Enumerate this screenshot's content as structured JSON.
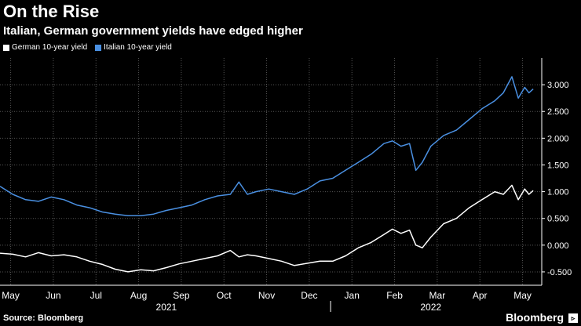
{
  "header": {
    "title": "On the Rise",
    "subtitle": "Italian, German government yields have edged higher"
  },
  "footer": {
    "source": "Source: Bloomberg",
    "brand": "Bloomberg"
  },
  "chart_data": {
    "type": "line",
    "title": "On the Rise",
    "subtitle": "Italian, German government yields have edged higher",
    "xlabel": "",
    "ylabel": "",
    "ylim": [
      -0.75,
      3.5
    ],
    "yticks": [
      -0.5,
      0,
      0.5,
      1,
      1.5,
      2,
      2.5,
      3
    ],
    "ytick_labels": [
      "-0.500",
      "0.000",
      "0.500",
      "1.000",
      "1.500",
      "2.000",
      "2.500",
      "3.000"
    ],
    "xlim": [
      0,
      12.7
    ],
    "xticks": [
      {
        "x": 0.25,
        "label": "May"
      },
      {
        "x": 1.25,
        "label": "Jun"
      },
      {
        "x": 2.25,
        "label": "Jul"
      },
      {
        "x": 3.25,
        "label": "Aug"
      },
      {
        "x": 4.25,
        "label": "Sep"
      },
      {
        "x": 5.25,
        "label": "Oct"
      },
      {
        "x": 6.25,
        "label": "Nov"
      },
      {
        "x": 7.25,
        "label": "Dec"
      },
      {
        "x": 8.25,
        "label": "Jan"
      },
      {
        "x": 9.25,
        "label": "Feb"
      },
      {
        "x": 10.25,
        "label": "Mar"
      },
      {
        "x": 11.25,
        "label": "Apr"
      },
      {
        "x": 12.25,
        "label": "May"
      }
    ],
    "year_labels": [
      {
        "x": 3.9,
        "label": "2021"
      },
      {
        "x": 10.1,
        "label": "2022"
      }
    ],
    "year_divider_x": 7.75,
    "grid": true,
    "legend_position": "top-left",
    "series": [
      {
        "name": "German 10-year yield",
        "color": "#ffffff",
        "x": [
          0,
          0.3,
          0.6,
          0.9,
          1.2,
          1.5,
          1.8,
          2.1,
          2.4,
          2.7,
          3.0,
          3.3,
          3.6,
          3.9,
          4.2,
          4.5,
          4.8,
          5.1,
          5.4,
          5.6,
          5.8,
          6.0,
          6.3,
          6.6,
          6.9,
          7.2,
          7.5,
          7.8,
          8.1,
          8.4,
          8.7,
          9.0,
          9.2,
          9.4,
          9.6,
          9.75,
          9.9,
          10.1,
          10.4,
          10.7,
          11.0,
          11.3,
          11.6,
          11.8,
          12.0,
          12.15,
          12.3,
          12.4,
          12.5
        ],
        "y": [
          -0.15,
          -0.17,
          -0.22,
          -0.14,
          -0.2,
          -0.18,
          -0.22,
          -0.3,
          -0.36,
          -0.45,
          -0.5,
          -0.46,
          -0.48,
          -0.42,
          -0.35,
          -0.3,
          -0.25,
          -0.2,
          -0.1,
          -0.22,
          -0.18,
          -0.2,
          -0.25,
          -0.3,
          -0.38,
          -0.34,
          -0.3,
          -0.3,
          -0.2,
          -0.05,
          0.05,
          0.2,
          0.3,
          0.22,
          0.28,
          0.0,
          -0.05,
          0.15,
          0.4,
          0.5,
          0.7,
          0.85,
          1.0,
          0.95,
          1.12,
          0.85,
          1.05,
          0.95,
          1.02
        ]
      },
      {
        "name": "Italian 10-year yield",
        "color": "#4a90e2",
        "x": [
          0,
          0.3,
          0.6,
          0.9,
          1.2,
          1.5,
          1.8,
          2.1,
          2.4,
          2.7,
          3.0,
          3.3,
          3.6,
          3.9,
          4.2,
          4.5,
          4.8,
          5.1,
          5.4,
          5.6,
          5.8,
          6.0,
          6.3,
          6.6,
          6.9,
          7.2,
          7.5,
          7.8,
          8.1,
          8.4,
          8.7,
          9.0,
          9.2,
          9.4,
          9.6,
          9.75,
          9.9,
          10.1,
          10.4,
          10.7,
          11.0,
          11.3,
          11.6,
          11.8,
          12.0,
          12.15,
          12.3,
          12.4,
          12.5
        ],
        "y": [
          1.1,
          0.95,
          0.85,
          0.82,
          0.9,
          0.85,
          0.75,
          0.7,
          0.62,
          0.58,
          0.55,
          0.55,
          0.58,
          0.65,
          0.7,
          0.75,
          0.85,
          0.92,
          0.95,
          1.18,
          0.95,
          1.0,
          1.05,
          1.0,
          0.95,
          1.05,
          1.2,
          1.25,
          1.4,
          1.55,
          1.7,
          1.9,
          1.95,
          1.85,
          1.9,
          1.4,
          1.55,
          1.85,
          2.05,
          2.15,
          2.35,
          2.55,
          2.7,
          2.85,
          3.15,
          2.75,
          2.95,
          2.85,
          2.92
        ]
      }
    ]
  }
}
